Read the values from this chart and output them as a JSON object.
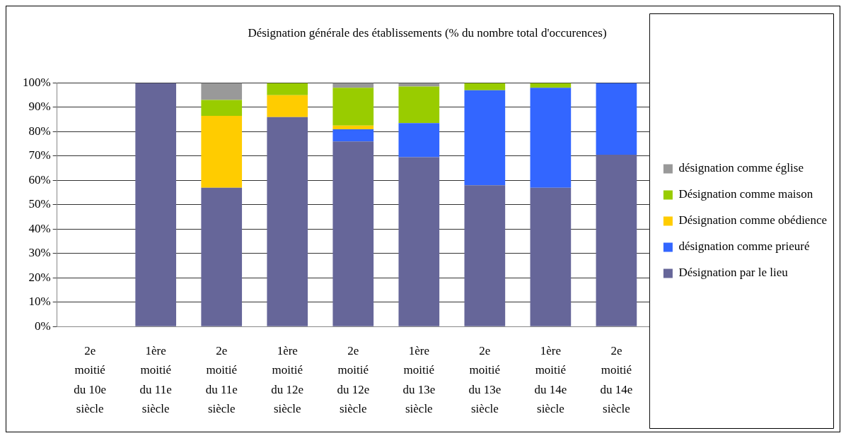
{
  "chart_data": {
    "type": "bar",
    "title": "Désignation générale des établissements (% du nombre total d'occurences)",
    "stacked": true,
    "categories": [
      "2e moitié du 10e siècle",
      "1ère moitié du 11e siècle",
      "2e moitié du 11e siècle",
      "1ère moitié du 12e siècle",
      "2e moitié du 12e siècle",
      "1ère moitié du 13e siècle",
      "2e moitié du 13e siècle",
      "1ère moitié du 14e siècle",
      "2e moitié du 14e siècle"
    ],
    "series": [
      {
        "name": "Désignation par le lieu",
        "color": "#666699",
        "values": [
          null,
          100,
          57,
          86,
          76,
          69.5,
          58,
          57,
          70.5
        ]
      },
      {
        "name": "désignation comme prieuré",
        "color": "#3366ff",
        "values": [
          null,
          0,
          0,
          0,
          5,
          14,
          39,
          41,
          29.5
        ]
      },
      {
        "name": "Désignation comme obédience",
        "color": "#ffcc00",
        "values": [
          null,
          0,
          29.5,
          9,
          1.5,
          0,
          0,
          0,
          0
        ]
      },
      {
        "name": "Désignation comme maison",
        "color": "#99cc00",
        "values": [
          null,
          0,
          6.5,
          5,
          15.5,
          15,
          3,
          2,
          0
        ]
      },
      {
        "name": "désignation comme église",
        "color": "#999999",
        "values": [
          null,
          0,
          7,
          0,
          2,
          1.5,
          0,
          0,
          0
        ]
      }
    ],
    "ylim": [
      0,
      100
    ],
    "yticks": [
      {
        "value": 0,
        "label": "0%"
      },
      {
        "value": 10,
        "label": "10%"
      },
      {
        "value": 20,
        "label": "20%"
      },
      {
        "value": 30,
        "label": "30%"
      },
      {
        "value": 40,
        "label": "40%"
      },
      {
        "value": 50,
        "label": "50%"
      },
      {
        "value": 60,
        "label": "60%"
      },
      {
        "value": 70,
        "label": "70%"
      },
      {
        "value": 80,
        "label": "80%"
      },
      {
        "value": 90,
        "label": "90%"
      },
      {
        "value": 100,
        "label": "100%"
      }
    ],
    "grid": "y",
    "legend": "right"
  }
}
